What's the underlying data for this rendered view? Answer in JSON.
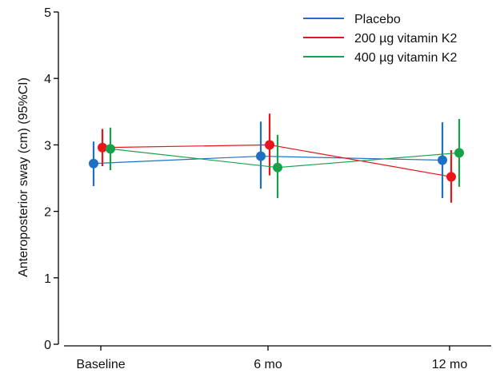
{
  "chart_data": {
    "type": "scatter",
    "title": "",
    "xlabel": "",
    "ylabel": "Anteroposterior sway (cm) (95%CI)",
    "ylim": [
      0,
      5
    ],
    "yticks": [
      "0",
      "1",
      "2",
      "3",
      "4",
      "5"
    ],
    "categories": [
      "Baseline",
      "6 mo",
      "12 mo"
    ],
    "error_bars": "95% CI",
    "legend_position": "top-right",
    "series": [
      {
        "name": "Placebo",
        "color": "#1f6fc4",
        "values": [
          2.72,
          2.83,
          2.77
        ],
        "ci_low": [
          2.38,
          2.34,
          2.2
        ],
        "ci_high": [
          3.05,
          3.35,
          3.34
        ]
      },
      {
        "name": "200 µg vitamin K2",
        "color": "#e8151b",
        "values": [
          2.96,
          3.0,
          2.52
        ],
        "ci_low": [
          2.68,
          2.54,
          2.13
        ],
        "ci_high": [
          3.24,
          3.47,
          2.92
        ]
      },
      {
        "name": "400 µg vitamin K2",
        "color": "#17a24a",
        "values": [
          2.94,
          2.66,
          2.88
        ],
        "ci_low": [
          2.62,
          2.2,
          2.37
        ],
        "ci_high": [
          3.26,
          3.15,
          3.39
        ]
      }
    ]
  }
}
